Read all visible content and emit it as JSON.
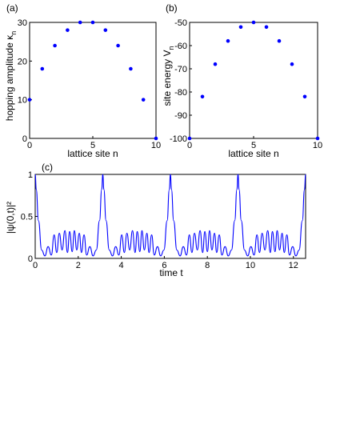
{
  "chart_data": [
    {
      "panel": "(a)",
      "type": "scatter",
      "xlabel": "lattice site n",
      "ylabel_main": "hopping amplitude κ",
      "ylabel_sub": "n",
      "xlim": [
        0,
        10
      ],
      "ylim": [
        0,
        30
      ],
      "xticks": [
        0,
        5,
        10
      ],
      "yticks": [
        0,
        10,
        20,
        30
      ],
      "color": "#0000ff",
      "x": [
        0,
        1,
        2,
        3,
        4,
        5,
        6,
        7,
        8,
        9,
        10
      ],
      "y": [
        10,
        18,
        24,
        28,
        30,
        30,
        28,
        24,
        18,
        10,
        0
      ]
    },
    {
      "panel": "(b)",
      "type": "scatter",
      "xlabel": "lattice site n",
      "ylabel_main": "site energy  V",
      "ylabel_sub": "n",
      "xlim": [
        0,
        10
      ],
      "ylim": [
        -100,
        -50
      ],
      "xticks": [
        0,
        5,
        10
      ],
      "yticks": [
        -100,
        -90,
        -80,
        -70,
        -60,
        -50
      ],
      "color": "#0000ff",
      "x": [
        0,
        1,
        2,
        3,
        4,
        5,
        6,
        7,
        8,
        9,
        10
      ],
      "y": [
        -100,
        -82,
        -68,
        -58,
        -52,
        -50,
        -52,
        -58,
        -68,
        -82,
        -100
      ]
    },
    {
      "panel": "(c)",
      "type": "line",
      "xlabel": "time  t",
      "ylabel": "|ψ(0,t)|²",
      "xlim": [
        0,
        12.566
      ],
      "ylim": [
        0,
        1
      ],
      "xticks": [
        0,
        2,
        4,
        6,
        8,
        10,
        12
      ],
      "yticks": [
        0,
        0.5,
        1
      ],
      "color": "#0000ff",
      "period": 3.1416,
      "x": [
        0,
        0.05,
        0.15,
        0.3,
        0.45,
        0.6,
        0.75,
        0.88,
        1.0,
        1.12,
        1.25,
        1.38,
        1.5,
        1.6,
        1.72,
        1.82,
        1.93,
        2.05,
        2.15,
        2.27,
        2.39,
        2.54,
        2.69,
        2.84,
        2.99,
        3.09,
        3.1416
      ],
      "y": [
        1.0,
        0.82,
        0.45,
        0.1,
        0.03,
        0.14,
        0.04,
        0.28,
        0.07,
        0.3,
        0.1,
        0.33,
        0.07,
        0.32,
        0.08,
        0.33,
        0.1,
        0.3,
        0.07,
        0.28,
        0.04,
        0.14,
        0.03,
        0.1,
        0.45,
        0.82,
        1.0
      ]
    }
  ]
}
